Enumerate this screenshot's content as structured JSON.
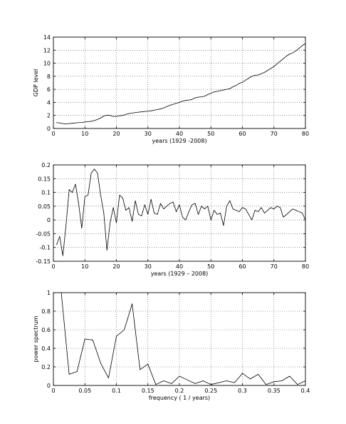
{
  "chart_data": [
    {
      "type": "line",
      "xlabel": "years (1929 -2008)",
      "ylabel": "GDP level",
      "xlim": [
        0,
        80
      ],
      "ylim": [
        0,
        14
      ],
      "xticks": [
        "0",
        "10",
        "20",
        "30",
        "40",
        "50",
        "60",
        "70",
        "80"
      ],
      "yticks": [
        "0",
        "2",
        "4",
        "6",
        "8",
        "10",
        "12",
        "14"
      ],
      "grid": true,
      "series": [
        {
          "x": [
            1,
            2,
            3,
            4,
            5,
            6,
            7,
            8,
            9,
            10,
            11,
            12,
            13,
            14,
            15,
            16,
            17,
            18,
            19,
            20,
            21,
            22,
            23,
            24,
            25,
            26,
            27,
            28,
            29,
            30,
            31,
            32,
            33,
            34,
            35,
            36,
            37,
            38,
            39,
            40,
            41,
            42,
            43,
            44,
            45,
            46,
            47,
            48,
            49,
            50,
            51,
            52,
            53,
            54,
            55,
            56,
            57,
            58,
            59,
            60,
            61,
            62,
            63,
            64,
            65,
            66,
            67,
            68,
            69,
            70,
            71,
            72,
            73,
            74,
            75,
            76,
            77,
            78,
            79,
            80
          ],
          "values": [
            0.9,
            0.85,
            0.75,
            0.7,
            0.75,
            0.8,
            0.85,
            0.9,
            0.92,
            1.0,
            1.05,
            1.1,
            1.2,
            1.4,
            1.6,
            1.9,
            2.05,
            2.0,
            1.85,
            1.85,
            1.95,
            2.0,
            2.15,
            2.3,
            2.35,
            2.45,
            2.5,
            2.55,
            2.6,
            2.65,
            2.7,
            2.8,
            2.9,
            3.0,
            3.15,
            3.35,
            3.55,
            3.7,
            3.85,
            4.0,
            4.2,
            4.3,
            4.35,
            4.45,
            4.7,
            4.8,
            4.85,
            4.95,
            5.2,
            5.4,
            5.6,
            5.7,
            5.8,
            5.9,
            6.0,
            6.1,
            6.4,
            6.6,
            6.9,
            7.1,
            7.4,
            7.7,
            8.0,
            8.15,
            8.2,
            8.4,
            8.6,
            8.9,
            9.2,
            9.5,
            9.9,
            10.3,
            10.7,
            11.1,
            11.4,
            11.6,
            11.9,
            12.3,
            12.7,
            13.0
          ]
        }
      ]
    },
    {
      "type": "line",
      "xlabel": "years (1929 – 2008)",
      "ylabel": "",
      "xlim": [
        0,
        80
      ],
      "ylim": [
        -0.15,
        0.2
      ],
      "xticks": [
        "0",
        "10",
        "20",
        "30",
        "40",
        "50",
        "60",
        "70",
        "80"
      ],
      "yticks": [
        "-0.15",
        "-0.1",
        "-0.05",
        "0",
        "0.05",
        "0.1",
        "0.15",
        "0.2"
      ],
      "grid": true,
      "series": [
        {
          "x": [
            1,
            2,
            3,
            4,
            5,
            6,
            7,
            8,
            9,
            10,
            11,
            12,
            13,
            14,
            15,
            16,
            17,
            18,
            19,
            20,
            21,
            22,
            23,
            24,
            25,
            26,
            27,
            28,
            29,
            30,
            31,
            32,
            33,
            34,
            35,
            36,
            37,
            38,
            39,
            40,
            41,
            42,
            43,
            44,
            45,
            46,
            47,
            48,
            49,
            50,
            51,
            52,
            53,
            54,
            55,
            56,
            57,
            58,
            59,
            60,
            61,
            62,
            63,
            64,
            65,
            66,
            67,
            68,
            69,
            70,
            71,
            72,
            73,
            74,
            75,
            76,
            77,
            78,
            79,
            80
          ],
          "values": [
            -0.09,
            -0.06,
            -0.13,
            -0.02,
            0.11,
            0.1,
            0.13,
            0.06,
            -0.03,
            0.085,
            0.09,
            0.17,
            0.185,
            0.17,
            0.09,
            0.025,
            -0.11,
            -0.01,
            0.045,
            -0.01,
            0.09,
            0.08,
            0.035,
            0.045,
            -0.005,
            0.07,
            0.02,
            0.015,
            0.055,
            0.02,
            0.075,
            0.025,
            0.02,
            0.06,
            0.04,
            0.05,
            0.06,
            0.065,
            0.03,
            0.055,
            0.01,
            0.0,
            0.03,
            0.055,
            0.06,
            0.02,
            0.05,
            0.04,
            0.05,
            0.0,
            0.035,
            0.02,
            0.025,
            -0.02,
            0.05,
            0.07,
            0.04,
            0.035,
            0.03,
            0.045,
            0.04,
            0.02,
            0.0,
            0.035,
            0.03,
            0.045,
            0.025,
            0.035,
            0.045,
            0.04,
            0.05,
            0.045,
            0.01,
            0.02,
            0.03,
            0.04,
            0.035,
            0.03,
            0.025,
            0.0
          ]
        }
      ]
    },
    {
      "type": "line",
      "xlabel": "frequency  ( 1 / years)",
      "ylabel": "power spectrum",
      "xlim": [
        0,
        0.4
      ],
      "ylim": [
        0,
        1
      ],
      "xticks": [
        "0",
        "0.05",
        "0.1",
        "0.15",
        "0.2",
        "0.25",
        "0.3",
        "0.35",
        "0.4"
      ],
      "yticks": [
        "0",
        "0.2",
        "0.4",
        "0.6",
        "0.8",
        "1"
      ],
      "grid": true,
      "series": [
        {
          "x": [
            0.0125,
            0.025,
            0.0375,
            0.05,
            0.0625,
            0.075,
            0.0875,
            0.1,
            0.1125,
            0.125,
            0.1375,
            0.15,
            0.1625,
            0.175,
            0.1875,
            0.2,
            0.2125,
            0.225,
            0.2375,
            0.25,
            0.2625,
            0.275,
            0.2875,
            0.3,
            0.3125,
            0.325,
            0.3375,
            0.35,
            0.3625,
            0.375,
            0.3875,
            0.4
          ],
          "values": [
            1.0,
            0.12,
            0.15,
            0.5,
            0.49,
            0.24,
            0.08,
            0.53,
            0.6,
            0.88,
            0.17,
            0.23,
            0.01,
            0.05,
            0.02,
            0.1,
            0.06,
            0.02,
            0.05,
            0.01,
            0.03,
            0.05,
            0.03,
            0.13,
            0.07,
            0.12,
            0.01,
            0.04,
            0.05,
            0.1,
            0.01,
            0.05
          ]
        }
      ]
    }
  ]
}
